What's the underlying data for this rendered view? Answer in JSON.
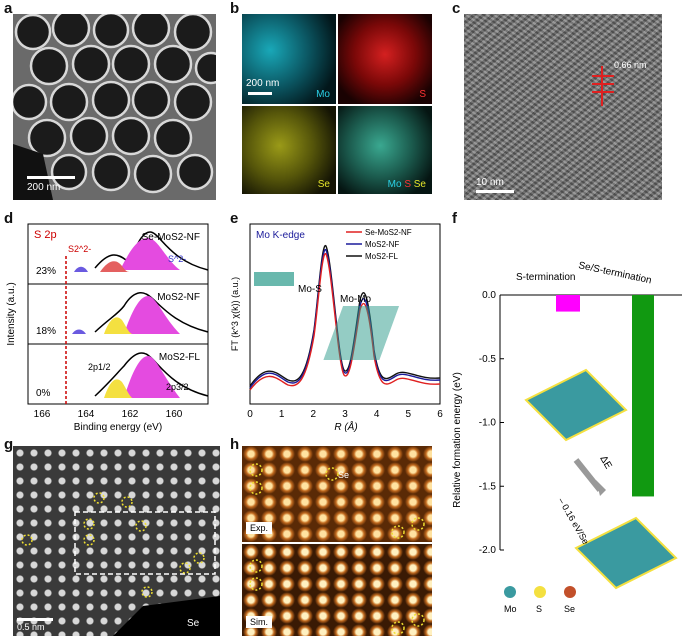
{
  "panel_labels": {
    "a": "a",
    "b": "b",
    "c": "c",
    "d": "d",
    "e": "e",
    "f": "f",
    "g": "g",
    "h": "h"
  },
  "a": {
    "scale": "200 nm"
  },
  "b": {
    "scale": "200 nm",
    "mo": "Mo",
    "s": "S",
    "se": "Se",
    "merge_mo": "Mo",
    "merge_s": "S",
    "merge_se": "Se"
  },
  "c": {
    "spacing": "0.66 nm",
    "scale": "10 nm"
  },
  "d": {
    "title": "S 2p",
    "ylabel": "Intensity (a.u.)",
    "xlabel": "Binding energy (eV)",
    "samples": [
      "Se-MoS2-NF",
      "MoS2-NF",
      "MoS2-FL"
    ],
    "percents": [
      "23%",
      "18%",
      "0%"
    ],
    "species": [
      "S2^2-",
      "S^2-"
    ],
    "peaks": [
      "2p1/2",
      "2p3/2"
    ],
    "xticks": [
      "166",
      "164",
      "162",
      "160"
    ]
  },
  "e": {
    "title": "Mo K-edge",
    "ylabel": "FT (k^3 χ(k)) (a.u.)",
    "xlabel": "R (Å)",
    "legend": [
      "Se-MoS2-NF",
      "MoS2-NF",
      "MoS2-FL"
    ],
    "colors": [
      "#e02020",
      "#1a1a9a",
      "#111111"
    ],
    "annot": [
      "Mo-S",
      "Mo-Mo"
    ],
    "xticks": [
      "0",
      "1",
      "2",
      "3",
      "4",
      "5",
      "6"
    ]
  },
  "f": {
    "ylabel": "Relative formation energy (eV)",
    "cat1": "S-termination",
    "cat2": "Se/S-termination",
    "yticks": [
      "0.0",
      "-0.5",
      "-1.0",
      "-1.5",
      "-2.0"
    ],
    "annotation": "– 0.16 eV/Se",
    "delta": "ΔE",
    "legend": [
      "Mo",
      "S",
      "Se"
    ]
  },
  "chart_data": [
    {
      "type": "bar",
      "categories": [
        "S-termination",
        "Se/S-termination"
      ],
      "values": [
        -0.13,
        -1.58
      ],
      "ylim": [
        -2.0,
        0.0
      ],
      "ylabel": "Relative formation energy (eV)",
      "colors": [
        "#ff00ff",
        "#119911"
      ]
    }
  ],
  "g": {
    "scale": "0.5 nm",
    "legend": "Se"
  },
  "h": {
    "se": "Se",
    "exp": "Exp.",
    "sim": "Sim."
  }
}
